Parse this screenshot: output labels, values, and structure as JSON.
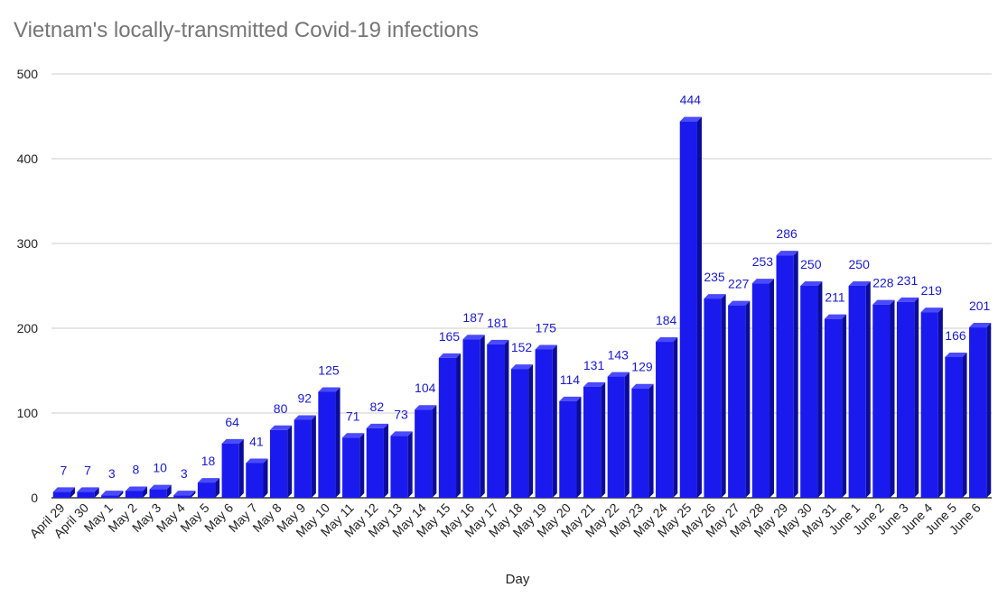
{
  "chart_data": {
    "type": "bar",
    "title": "Vietnam's locally-transmitted Covid-19 infections",
    "xlabel": "Day",
    "ylabel": "",
    "ylim": [
      0,
      500
    ],
    "yticks": [
      0,
      100,
      200,
      300,
      400,
      500
    ],
    "grid": true,
    "legend": "none",
    "bar_color": "#1a1aee",
    "categories": [
      "April 29",
      "April 30",
      "May 1",
      "May 2",
      "May 3",
      "May 4",
      "May 5",
      "May 6",
      "May 7",
      "May 8",
      "May 9",
      "May 10",
      "May 11",
      "May 12",
      "May 13",
      "May 14",
      "May 15",
      "May 16",
      "May 17",
      "May 18",
      "May 19",
      "May 20",
      "May 21",
      "May 22",
      "May 23",
      "May 24",
      "May 25",
      "May 26",
      "May 27",
      "May 28",
      "May 29",
      "May 30",
      "May 31",
      "June 1",
      "June 2",
      "June 3",
      "June 4",
      "June 5",
      "June 6"
    ],
    "values": [
      7,
      7,
      3,
      8,
      10,
      3,
      18,
      64,
      41,
      80,
      92,
      125,
      71,
      82,
      73,
      104,
      165,
      187,
      181,
      152,
      175,
      114,
      131,
      143,
      129,
      184,
      444,
      235,
      227,
      253,
      286,
      250,
      211,
      250,
      228,
      231,
      219,
      166,
      201
    ]
  }
}
